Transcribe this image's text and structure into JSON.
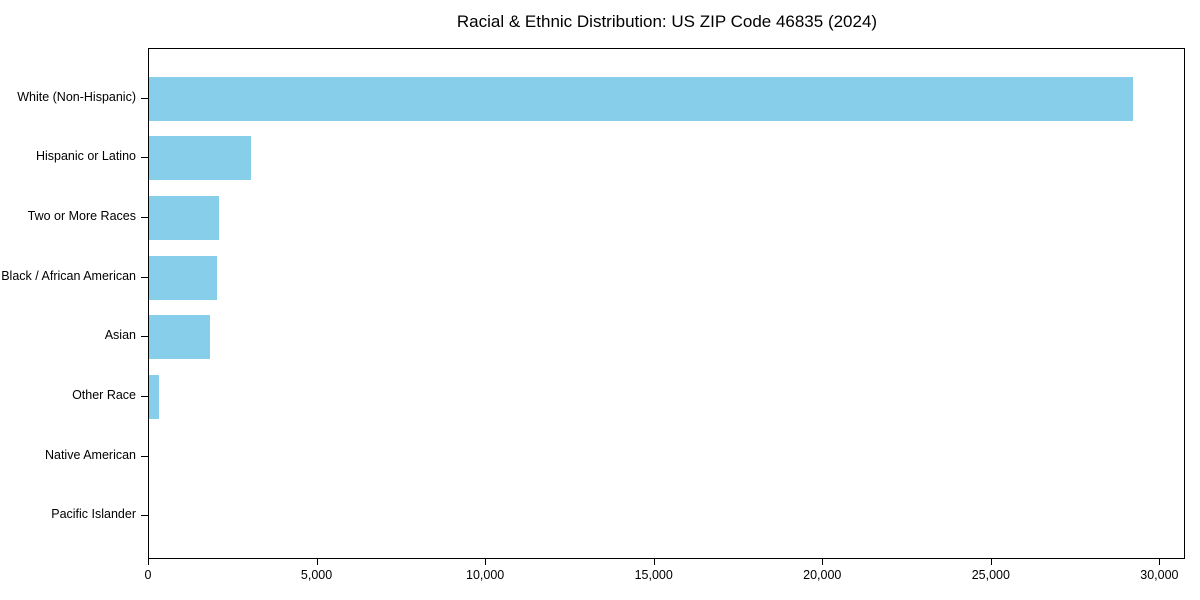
{
  "chart_data": {
    "type": "bar",
    "orientation": "horizontal",
    "title": "Racial & Ethnic Distribution: US ZIP Code 46835 (2024)",
    "categories": [
      "White (Non-Hispanic)",
      "Hispanic or Latino",
      "Two or More Races",
      "Black / African American",
      "Asian",
      "Other Race",
      "Native American",
      "Pacific Islander"
    ],
    "values": [
      29200,
      3040,
      2070,
      2010,
      1800,
      300,
      0,
      0
    ],
    "xlabel": "",
    "ylabel": "",
    "xlim": [
      0,
      30700
    ],
    "xticks": [
      0,
      5000,
      10000,
      15000,
      20000,
      25000,
      30000
    ],
    "xtick_labels": [
      "0",
      "5,000",
      "10,000",
      "15,000",
      "20,000",
      "25,000",
      "30,000"
    ],
    "bar_color": "#87CEEB",
    "axis_color": "#000000",
    "text_color": "#000000",
    "grid": false,
    "legend": null
  }
}
